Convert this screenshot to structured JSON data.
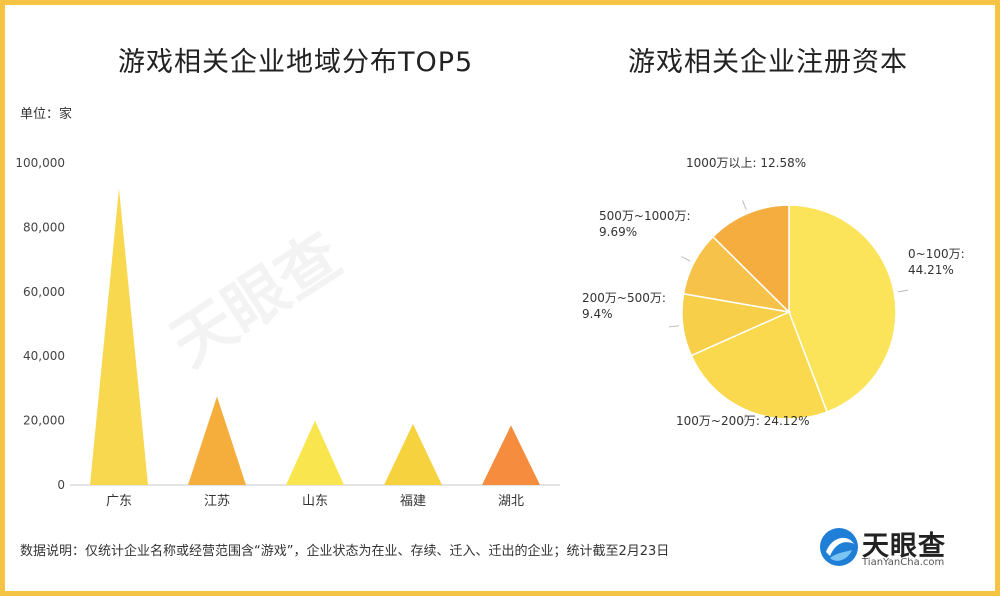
{
  "bar_title": "游戏相关企业地域分布TOP5",
  "pie_title": "游戏相关企业注册资本",
  "unit_label": "单位：家",
  "footnote": "数据说明：仅统计企业名称或经营范围含“游戏”，企业状态为在业、存续、迁入、迁出的企业；统计截至2月23日",
  "logo": {
    "name": "天眼查",
    "domain": "TianYanCha.com",
    "icon": "tianyancha-logo-icon"
  },
  "watermark": "天眼查",
  "colors": {
    "frame": "#f6c445"
  },
  "chart_data": [
    {
      "type": "bar",
      "shape": "triangle",
      "title": "游戏相关企业地域分布TOP5",
      "ylabel": "单位：家",
      "categories": [
        "广东",
        "江苏",
        "山东",
        "福建",
        "湖北"
      ],
      "values": [
        92000,
        27500,
        20000,
        19000,
        18500
      ],
      "colors": [
        "#f7d84e",
        "#f5ad3c",
        "#f9e64f",
        "#f6d23f",
        "#f58c3e"
      ],
      "ylim": [
        0,
        100000
      ],
      "yticks": [
        0,
        20000,
        40000,
        60000,
        80000,
        100000
      ],
      "ytick_labels": [
        "0",
        "20,000",
        "40,000",
        "60,000",
        "80,000",
        "100,000"
      ],
      "grid": false
    },
    {
      "type": "pie",
      "title": "游戏相关企业注册资本",
      "slices": [
        {
          "label": "0~100万",
          "value": 44.21,
          "text": "0~100万:\n44.21%",
          "color": "#fbe35a"
        },
        {
          "label": "100万~200万",
          "value": 24.12,
          "text": "100万~200万: 24.12%",
          "color": "#fad94e"
        },
        {
          "label": "200万~500万",
          "value": 9.4,
          "text": "200万~500万:\n9.4%",
          "color": "#f8cf49"
        },
        {
          "label": "500万~1000万",
          "value": 9.69,
          "text": "500万~1000万:\n9.69%",
          "color": "#f7c24a"
        },
        {
          "label": "1000万以上",
          "value": 12.58,
          "text": "1000万以上: 12.58%",
          "color": "#f5ad40"
        }
      ]
    }
  ]
}
